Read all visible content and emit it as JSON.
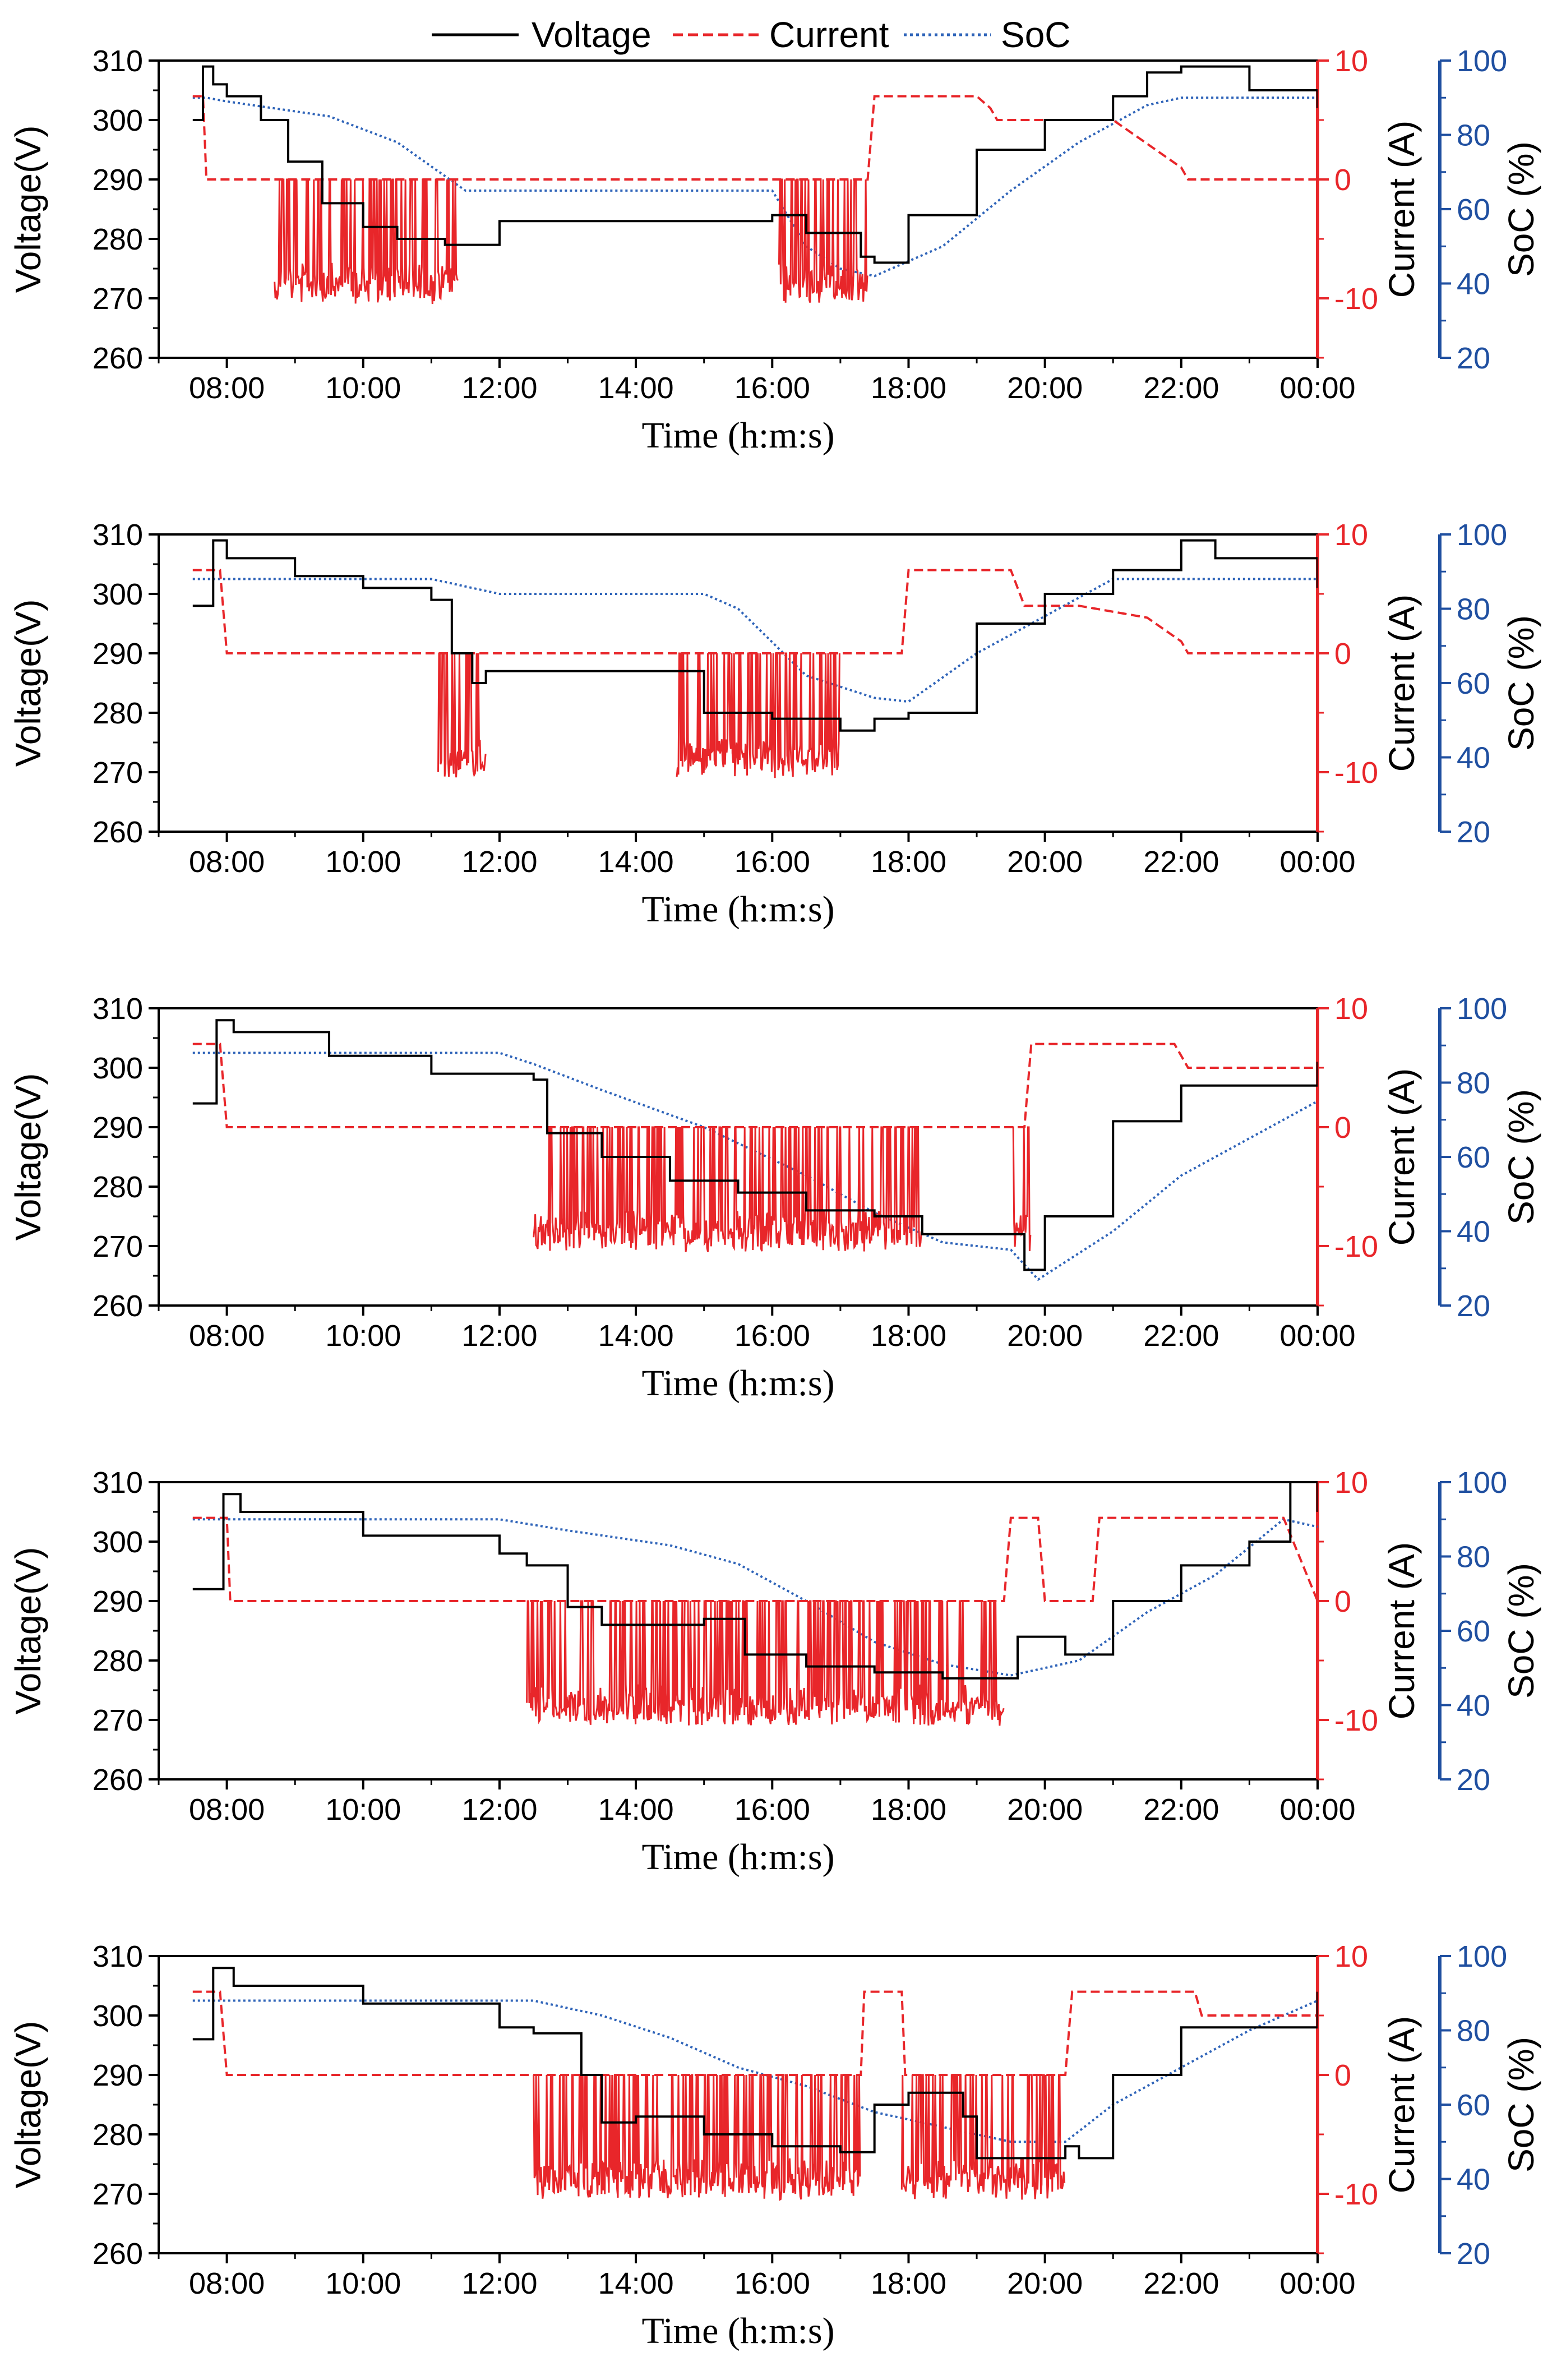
{
  "legend": [
    {
      "name": "Voltage",
      "color": "#000000",
      "style": "solid"
    },
    {
      "name": "Current",
      "color": "#e8262a",
      "style": "dashed"
    },
    {
      "name": "SoC",
      "color": "#2f64b9",
      "style": "dotted"
    }
  ],
  "colors": {
    "voltage": "#000000",
    "current": "#e8262a",
    "soc": "#2f64b9",
    "soc_axis": "#1f4fa0"
  },
  "chart_data": [
    {
      "type": "line",
      "title": "",
      "xlabel": "Time (h:m:s)",
      "ylabel": "Voltage(V)",
      "y2label": "Current (A)",
      "y3label": "SoC (%)",
      "xlim": [
        7,
        24
      ],
      "ylim": [
        260,
        310
      ],
      "y2lim": [
        -15,
        10
      ],
      "y3lim": [
        20,
        100
      ],
      "xticks": [
        "08:00",
        "10:00",
        "12:00",
        "14:00",
        "16:00",
        "18:00",
        "20:00",
        "22:00",
        "00:00"
      ],
      "yticks": [
        260,
        270,
        280,
        290,
        300,
        310
      ],
      "y2ticks": [
        -10,
        0,
        10
      ],
      "y3ticks": [
        20,
        40,
        60,
        80,
        100
      ],
      "series": [
        {
          "name": "Voltage",
          "x": [
            7.5,
            7.65,
            7.8,
            8.0,
            8.5,
            8.9,
            9.4,
            10.0,
            10.5,
            11.2,
            11.45,
            12.0,
            16.0,
            16.3,
            16.5,
            17.3,
            17.5,
            18.0,
            19.0,
            20.0,
            21.0,
            21.5,
            22.0,
            23.0,
            24.0
          ],
          "y": [
            300,
            309,
            306,
            304,
            300,
            293,
            286,
            282,
            280,
            279,
            279,
            283,
            284,
            284,
            281,
            277,
            276,
            284,
            295,
            300,
            304,
            308,
            309,
            305,
            302
          ]
        },
        {
          "name": "Current",
          "x": [
            7.5,
            7.65,
            7.7,
            8.5,
            16.1,
            17.4,
            17.5,
            19.0,
            19.2,
            19.3,
            21.0,
            21.5,
            22.0,
            22.1,
            24.0
          ],
          "y": [
            7,
            7,
            0,
            0,
            0,
            0,
            7,
            7,
            6,
            5,
            5,
            3,
            1,
            0,
            0
          ]
        },
        {
          "name": "SoC",
          "x": [
            7.5,
            7.7,
            8.0,
            9.5,
            10.5,
            11.5,
            16.0,
            16.5,
            17.0,
            17.5,
            18.5,
            19.5,
            20.5,
            21.5,
            22.0,
            24.0
          ],
          "y": [
            90,
            90,
            89,
            85,
            78,
            65,
            65,
            50,
            44,
            42,
            50,
            65,
            78,
            88,
            90,
            90
          ]
        }
      ],
      "discharge_bursts": [
        [
          8.7,
          11.4
        ],
        [
          16.1,
          17.4
        ]
      ]
    },
    {
      "type": "line",
      "title": "",
      "xlabel": "Time (h:m:s)",
      "ylabel": "Voltage(V)",
      "y2label": "Current (A)",
      "y3label": "SoC (%)",
      "xlim": [
        7,
        24
      ],
      "ylim": [
        260,
        310
      ],
      "y2lim": [
        -15,
        10
      ],
      "y3lim": [
        20,
        100
      ],
      "xticks": [
        "08:00",
        "10:00",
        "12:00",
        "14:00",
        "16:00",
        "18:00",
        "20:00",
        "22:00",
        "00:00"
      ],
      "yticks": [
        260,
        270,
        280,
        290,
        300,
        310
      ],
      "y2ticks": [
        -10,
        0,
        10
      ],
      "y3ticks": [
        20,
        40,
        60,
        80,
        100
      ],
      "series": [
        {
          "name": "Voltage",
          "x": [
            7.5,
            7.8,
            8.0,
            9.0,
            10.0,
            11.0,
            11.3,
            11.6,
            11.8,
            14.6,
            15.0,
            16.0,
            17.0,
            17.5,
            18.0,
            19.0,
            20.0,
            21.0,
            22.0,
            22.5,
            24.0
          ],
          "y": [
            298,
            309,
            306,
            303,
            301,
            299,
            290,
            285,
            287,
            287,
            280,
            279,
            277,
            279,
            280,
            295,
            300,
            304,
            309,
            306,
            301
          ]
        },
        {
          "name": "Current",
          "x": [
            7.5,
            7.9,
            8.0,
            11.1,
            17.9,
            18.0,
            19.5,
            19.7,
            20.5,
            21.5,
            22.0,
            22.1,
            24.0
          ],
          "y": [
            7,
            7,
            0,
            0,
            0,
            7,
            7,
            4,
            4,
            3,
            1,
            0,
            0
          ]
        },
        {
          "name": "SoC",
          "x": [
            7.5,
            11.0,
            12.0,
            15.0,
            15.5,
            16.5,
            17.5,
            18.0,
            19.0,
            20.0,
            21.0,
            24.0
          ],
          "y": [
            88,
            88,
            84,
            84,
            80,
            62,
            56,
            55,
            68,
            78,
            88,
            88
          ]
        }
      ],
      "discharge_bursts": [
        [
          11.1,
          11.8
        ],
        [
          14.6,
          17.0
        ]
      ]
    },
    {
      "type": "line",
      "title": "",
      "xlabel": "Time (h:m:s)",
      "ylabel": "Voltage(V)",
      "y2label": "Current (A)",
      "y3label": "SoC (%)",
      "xlim": [
        7,
        24
      ],
      "ylim": [
        260,
        310
      ],
      "y2lim": [
        -15,
        10
      ],
      "y3lim": [
        20,
        100
      ],
      "xticks": [
        "08:00",
        "10:00",
        "12:00",
        "14:00",
        "16:00",
        "18:00",
        "20:00",
        "22:00",
        "00:00"
      ],
      "yticks": [
        260,
        270,
        280,
        290,
        300,
        310
      ],
      "y2ticks": [
        -10,
        0,
        10
      ],
      "y3ticks": [
        20,
        40,
        60,
        80,
        100
      ],
      "series": [
        {
          "name": "Voltage",
          "x": [
            7.5,
            7.85,
            8.1,
            9.5,
            11.0,
            12.5,
            12.7,
            13.5,
            14.5,
            15.5,
            16.5,
            17.5,
            18.2,
            19.5,
            19.7,
            20.0,
            21.0,
            22.0,
            24.0
          ],
          "y": [
            294,
            308,
            306,
            302,
            299,
            298,
            289,
            285,
            281,
            279,
            276,
            275,
            272,
            272,
            266,
            275,
            291,
            297,
            301
          ]
        },
        {
          "name": "Current",
          "x": [
            7.5,
            7.9,
            8.0,
            12.4,
            19.7,
            19.8,
            21.9,
            22.1,
            24.0
          ],
          "y": [
            7,
            7,
            0,
            0,
            0,
            7,
            7,
            5,
            5
          ]
        },
        {
          "name": "SoC",
          "x": [
            7.5,
            12.0,
            12.5,
            13.5,
            15.0,
            16.5,
            17.5,
            18.5,
            19.5,
            19.9,
            21.0,
            22.0,
            24.0
          ],
          "y": [
            88,
            88,
            85,
            78,
            68,
            55,
            45,
            37,
            35,
            27,
            40,
            55,
            75
          ]
        }
      ],
      "discharge_bursts": [
        [
          12.5,
          18.2
        ],
        [
          19.5,
          19.8
        ]
      ]
    },
    {
      "type": "line",
      "title": "",
      "xlabel": "Time (h:m:s)",
      "ylabel": "Voltage(V)",
      "y2label": "Current (A)",
      "y3label": "SoC (%)",
      "xlim": [
        7,
        24
      ],
      "ylim": [
        260,
        310
      ],
      "y2lim": [
        -15,
        10
      ],
      "y3lim": [
        20,
        100
      ],
      "xticks": [
        "08:00",
        "10:00",
        "12:00",
        "14:00",
        "16:00",
        "18:00",
        "20:00",
        "22:00",
        "00:00"
      ],
      "yticks": [
        260,
        270,
        280,
        290,
        300,
        310
      ],
      "y2ticks": [
        -10,
        0,
        10
      ],
      "y3ticks": [
        20,
        40,
        60,
        80,
        100
      ],
      "series": [
        {
          "name": "Voltage",
          "x": [
            7.5,
            7.95,
            8.2,
            10.0,
            12.0,
            12.4,
            13.0,
            13.5,
            15.0,
            15.6,
            16.5,
            17.5,
            18.5,
            19.3,
            19.6,
            20.3,
            21.0,
            22.0,
            23.0,
            23.6,
            24.0
          ],
          "y": [
            292,
            308,
            305,
            301,
            298,
            296,
            289,
            286,
            287,
            281,
            279,
            278,
            277,
            277,
            284,
            281,
            290,
            296,
            300,
            310,
            305
          ]
        },
        {
          "name": "Current",
          "x": [
            7.5,
            8.0,
            8.05,
            12.3,
            19.4,
            19.5,
            19.9,
            20.0,
            20.7,
            20.8,
            23.5,
            24.0
          ],
          "y": [
            7,
            7,
            0,
            0,
            0,
            7,
            7,
            0,
            0,
            7,
            7,
            0
          ]
        },
        {
          "name": "SoC",
          "x": [
            7.5,
            12.0,
            13.0,
            14.5,
            15.5,
            16.5,
            17.5,
            18.5,
            19.5,
            20.5,
            21.5,
            22.5,
            23.5,
            24.0
          ],
          "y": [
            90,
            90,
            87,
            83,
            78,
            68,
            57,
            51,
            48,
            52,
            65,
            75,
            90,
            88
          ]
        }
      ],
      "discharge_bursts": [
        [
          12.4,
          19.4
        ]
      ]
    },
    {
      "type": "line",
      "title": "",
      "xlabel": "Time (h:m:s)",
      "ylabel": "Voltage(V)",
      "y2label": "Current (A)",
      "y3label": "SoC (%)",
      "xlim": [
        7,
        24
      ],
      "ylim": [
        260,
        310
      ],
      "y2lim": [
        -15,
        10
      ],
      "y3lim": [
        20,
        100
      ],
      "xticks": [
        "08:00",
        "10:00",
        "12:00",
        "14:00",
        "16:00",
        "18:00",
        "20:00",
        "22:00",
        "00:00"
      ],
      "yticks": [
        260,
        270,
        280,
        290,
        300,
        310
      ],
      "y2ticks": [
        -10,
        0,
        10
      ],
      "y3ticks": [
        20,
        40,
        60,
        80,
        100
      ],
      "series": [
        {
          "name": "Voltage",
          "x": [
            7.5,
            7.8,
            8.1,
            10.0,
            12.0,
            12.5,
            13.2,
            13.5,
            14.0,
            15.0,
            16.0,
            17.0,
            17.5,
            18.0,
            18.8,
            19.0,
            20.3,
            20.5,
            21.0,
            22.0,
            24.0
          ],
          "y": [
            296,
            308,
            305,
            302,
            298,
            297,
            290,
            282,
            283,
            280,
            278,
            277,
            285,
            287,
            283,
            276,
            278,
            276,
            290,
            298,
            304
          ]
        },
        {
          "name": "Current",
          "x": [
            7.5,
            7.9,
            8.0,
            12.5,
            17.3,
            17.35,
            17.9,
            17.95,
            20.3,
            20.4,
            22.2,
            22.3,
            24.0
          ],
          "y": [
            7,
            7,
            0,
            0,
            0,
            7,
            7,
            0,
            0,
            7,
            7,
            5,
            5
          ]
        },
        {
          "name": "SoC",
          "x": [
            7.5,
            12.5,
            13.5,
            14.5,
            15.5,
            16.5,
            17.5,
            18.5,
            19.5,
            20.3,
            21.0,
            22.0,
            23.0,
            24.0
          ],
          "y": [
            88,
            88,
            84,
            78,
            70,
            65,
            58,
            54,
            50,
            50,
            60,
            70,
            80,
            88
          ]
        }
      ],
      "discharge_bursts": [
        [
          12.5,
          17.3
        ],
        [
          17.9,
          20.3
        ]
      ]
    }
  ]
}
